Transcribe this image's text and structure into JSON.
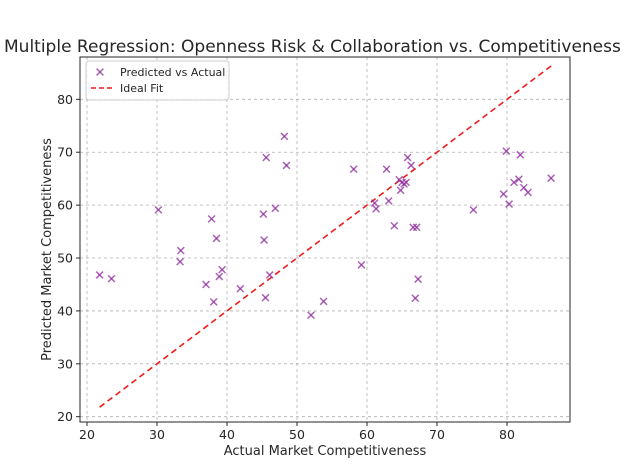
{
  "chart_data": {
    "type": "scatter",
    "title": "Multiple Regression: Openness Risk & Collaboration vs. Competitiveness",
    "xlabel": "Actual Market Competitiveness",
    "ylabel": "Predicted Market Competitiveness",
    "xlim": [
      19,
      89
    ],
    "ylim": [
      19,
      88
    ],
    "xticks": [
      20,
      30,
      40,
      50,
      60,
      70,
      80
    ],
    "yticks": [
      20,
      30,
      40,
      50,
      60,
      70,
      80
    ],
    "grid": true,
    "legend_position": "top-left",
    "series": [
      {
        "name": "Predicted vs Actual",
        "marker": "x",
        "color": "#8e2e9c",
        "points": [
          [
            21.8,
            46.8
          ],
          [
            23.5,
            46.1
          ],
          [
            30.2,
            59.1
          ],
          [
            33.4,
            51.4
          ],
          [
            33.3,
            49.3
          ],
          [
            37.0,
            45.0
          ],
          [
            37.8,
            57.4
          ],
          [
            38.1,
            41.7
          ],
          [
            38.5,
            53.7
          ],
          [
            38.9,
            46.5
          ],
          [
            39.3,
            47.8
          ],
          [
            41.9,
            44.2
          ],
          [
            45.2,
            58.3
          ],
          [
            45.3,
            53.4
          ],
          [
            45.5,
            42.5
          ],
          [
            45.6,
            69.0
          ],
          [
            46.1,
            46.8
          ],
          [
            46.9,
            59.4
          ],
          [
            48.2,
            73.0
          ],
          [
            48.5,
            67.5
          ],
          [
            52.0,
            39.2
          ],
          [
            53.8,
            41.8
          ],
          [
            58.1,
            66.8
          ],
          [
            59.2,
            48.7
          ],
          [
            61.1,
            60.4
          ],
          [
            61.3,
            59.3
          ],
          [
            62.8,
            66.8
          ],
          [
            63.1,
            60.8
          ],
          [
            63.9,
            56.1
          ],
          [
            64.6,
            64.8
          ],
          [
            64.8,
            62.8
          ],
          [
            65.0,
            64.3
          ],
          [
            65.3,
            64.0
          ],
          [
            65.6,
            64.3
          ],
          [
            65.8,
            69.0
          ],
          [
            66.3,
            67.5
          ],
          [
            66.6,
            55.8
          ],
          [
            67.1,
            55.8
          ],
          [
            66.9,
            42.4
          ],
          [
            67.3,
            46.0
          ],
          [
            75.2,
            59.1
          ],
          [
            79.5,
            62.1
          ],
          [
            79.9,
            70.2
          ],
          [
            80.3,
            60.2
          ],
          [
            81.0,
            64.3
          ],
          [
            81.7,
            64.9
          ],
          [
            81.9,
            69.5
          ],
          [
            82.4,
            63.3
          ],
          [
            83.0,
            62.4
          ],
          [
            86.3,
            65.1
          ]
        ]
      },
      {
        "name": "Ideal Fit",
        "style": "dashed-line",
        "color": "#ee1c1c",
        "points": [
          [
            21.8,
            21.8
          ],
          [
            86.3,
            86.3
          ]
        ]
      }
    ]
  }
}
